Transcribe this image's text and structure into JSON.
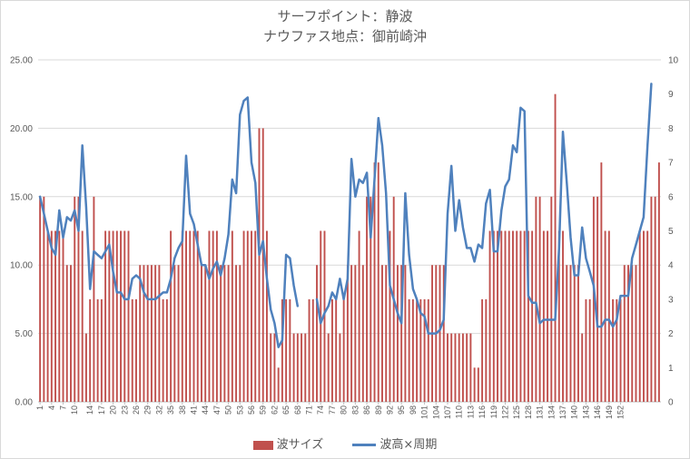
{
  "chart_data": {
    "type": "bar+line",
    "title": "サーフポイント：静波",
    "subtitle": "ナウファス地点：御前崎沖",
    "y_left": {
      "min": 0,
      "max": 25,
      "ticks": [
        "0.00",
        "5.00",
        "10.00",
        "15.00",
        "20.00",
        "25.00"
      ]
    },
    "y_right": {
      "min": 0,
      "max": 10,
      "ticks": [
        "0",
        "1",
        "2",
        "3",
        "4",
        "5",
        "6",
        "7",
        "8",
        "9",
        "10"
      ]
    },
    "x_tick_labels": [
      "1",
      "4",
      "7",
      "10",
      "14",
      "17",
      "20",
      "23",
      "26",
      "29",
      "32",
      "35",
      "38",
      "41",
      "44",
      "47",
      "50",
      "53",
      "56",
      "59",
      "62",
      "65",
      "68",
      "71",
      "74",
      "77",
      "80",
      "83",
      "86",
      "89",
      "92",
      "95",
      "98",
      "101",
      "104",
      "107",
      "110",
      "113",
      "116",
      "119",
      "122",
      "125",
      "128",
      "131",
      "134",
      "137",
      "140",
      "143",
      "146",
      "149",
      "152"
    ],
    "series": [
      {
        "name": "波サイズ",
        "type": "bar",
        "color": "#c0504d",
        "values": [
          15,
          15,
          12.5,
          12.5,
          12.5,
          12.5,
          12.5,
          10,
          10,
          15,
          15,
          12.5,
          5,
          7.5,
          15,
          7.5,
          7.5,
          12.5,
          12.5,
          12.5,
          12.5,
          12.5,
          12.5,
          12.5,
          7.5,
          7.5,
          10,
          10,
          10,
          10,
          10,
          10,
          7.5,
          7.5,
          12.5,
          10,
          10,
          12.5,
          12.5,
          12.5,
          12.5,
          12.5,
          10,
          10,
          12.5,
          12.5,
          12.5,
          10,
          10,
          10,
          12.5,
          10,
          10,
          12.5,
          12.5,
          12.5,
          12.5,
          20,
          20,
          12.5,
          5,
          5,
          2.5,
          7.5,
          7.5,
          7.5,
          5,
          5,
          5,
          5,
          7.5,
          7.5,
          10,
          12.5,
          12.5,
          5,
          7.5,
          7.5,
          5,
          7.5,
          10,
          10,
          10,
          12.5,
          10,
          15,
          15,
          17.5,
          17.5,
          10,
          10,
          12.5,
          15,
          10,
          10,
          10,
          7.5,
          7.5,
          7.5,
          7.5,
          7.5,
          7.5,
          10,
          10,
          10,
          10,
          5,
          5,
          5,
          5,
          5,
          5,
          5,
          2.5,
          2.5,
          7.5,
          7.5,
          12.5,
          12.5,
          12.5,
          12.5,
          12.5,
          12.5,
          12.5,
          12.5,
          12.5,
          12.5,
          12.5,
          12.5,
          15,
          15,
          12.5,
          12.5,
          15,
          22.5,
          12.5,
          12.5,
          10,
          10,
          10,
          10,
          5,
          7.5,
          7.5,
          15,
          15,
          17.5,
          12.5,
          12.5,
          7.5,
          7.5,
          7.5,
          10,
          10,
          10,
          10,
          12.5,
          12.5,
          12.5,
          15,
          15,
          17.5
        ]
      },
      {
        "name": "波高×周期",
        "type": "line",
        "color": "#4f81bd",
        "axis": "right",
        "values": [
          6.0,
          5.5,
          5.0,
          4.5,
          4.3,
          5.6,
          4.8,
          5.4,
          5.3,
          5.6,
          5.0,
          7.5,
          5.7,
          3.3,
          4.4,
          4.3,
          4.2,
          4.4,
          4.6,
          3.8,
          3.2,
          3.2,
          3.0,
          3.0,
          3.6,
          3.7,
          3.6,
          3.2,
          3.0,
          3.0,
          3.0,
          3.1,
          3.2,
          3.2,
          3.6,
          4.2,
          4.5,
          4.7,
          7.2,
          5.5,
          5.2,
          4.6,
          4.0,
          4.0,
          3.6,
          3.9,
          4.1,
          3.7,
          4.2,
          4.9,
          6.5,
          6.1,
          8.4,
          8.8,
          8.9,
          7.0,
          6.4,
          4.3,
          4.7,
          3.6,
          2.7,
          2.3,
          1.6,
          1.8,
          4.3,
          4.2,
          3.4,
          2.8,
          null,
          null,
          null,
          null,
          3.0,
          2.3,
          2.6,
          2.8,
          3.2,
          3.0,
          3.6,
          3.0,
          3.6,
          7.1,
          6.0,
          6.5,
          6.4,
          6.7,
          4.8,
          6.5,
          8.3,
          7.5,
          6.1,
          3.4,
          3.0,
          2.6,
          2.3,
          6.1,
          4.3,
          3.3,
          3.0,
          2.6,
          2.5,
          2.0,
          2.0,
          2.0,
          2.1,
          2.4,
          5.5,
          6.9,
          5.0,
          5.9,
          5.1,
          4.5,
          4.5,
          4.1,
          4.6,
          4.5,
          5.8,
          6.2,
          4.4,
          4.4,
          5.6,
          6.3,
          6.5,
          7.5,
          7.3,
          8.6,
          8.5,
          3.1,
          2.9,
          2.9,
          2.3,
          2.4,
          2.4,
          2.4,
          2.4,
          4.5,
          7.9,
          6.4,
          4.8,
          3.7,
          3.7,
          5.1,
          4.2,
          3.8,
          3.4,
          2.2,
          2.2,
          2.4,
          2.4,
          2.2,
          2.4,
          3.1,
          3.1,
          3.1,
          4.2,
          4.6,
          5.0,
          5.4,
          7.5,
          9.3
        ]
      }
    ]
  },
  "legend": {
    "bar_label": "波サイズ",
    "line_label": "波高×周期"
  }
}
